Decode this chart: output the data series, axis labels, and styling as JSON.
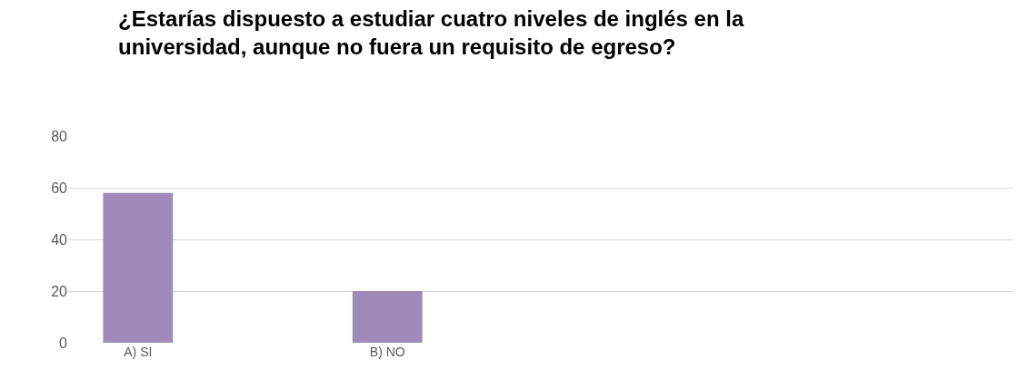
{
  "chart_data": {
    "type": "bar",
    "title": "¿Estarías dispuesto a estudiar cuatro niveles de inglés en la universidad, aunque no fuera un requisito de egreso?",
    "categories": [
      "A) SI",
      "B) NO",
      null,
      null
    ],
    "values": [
      58,
      20,
      null,
      null
    ],
    "color": "#a08aba",
    "ylim": [
      0,
      80
    ],
    "yticks": [
      0,
      20,
      40,
      60,
      80
    ],
    "grid": "y"
  }
}
